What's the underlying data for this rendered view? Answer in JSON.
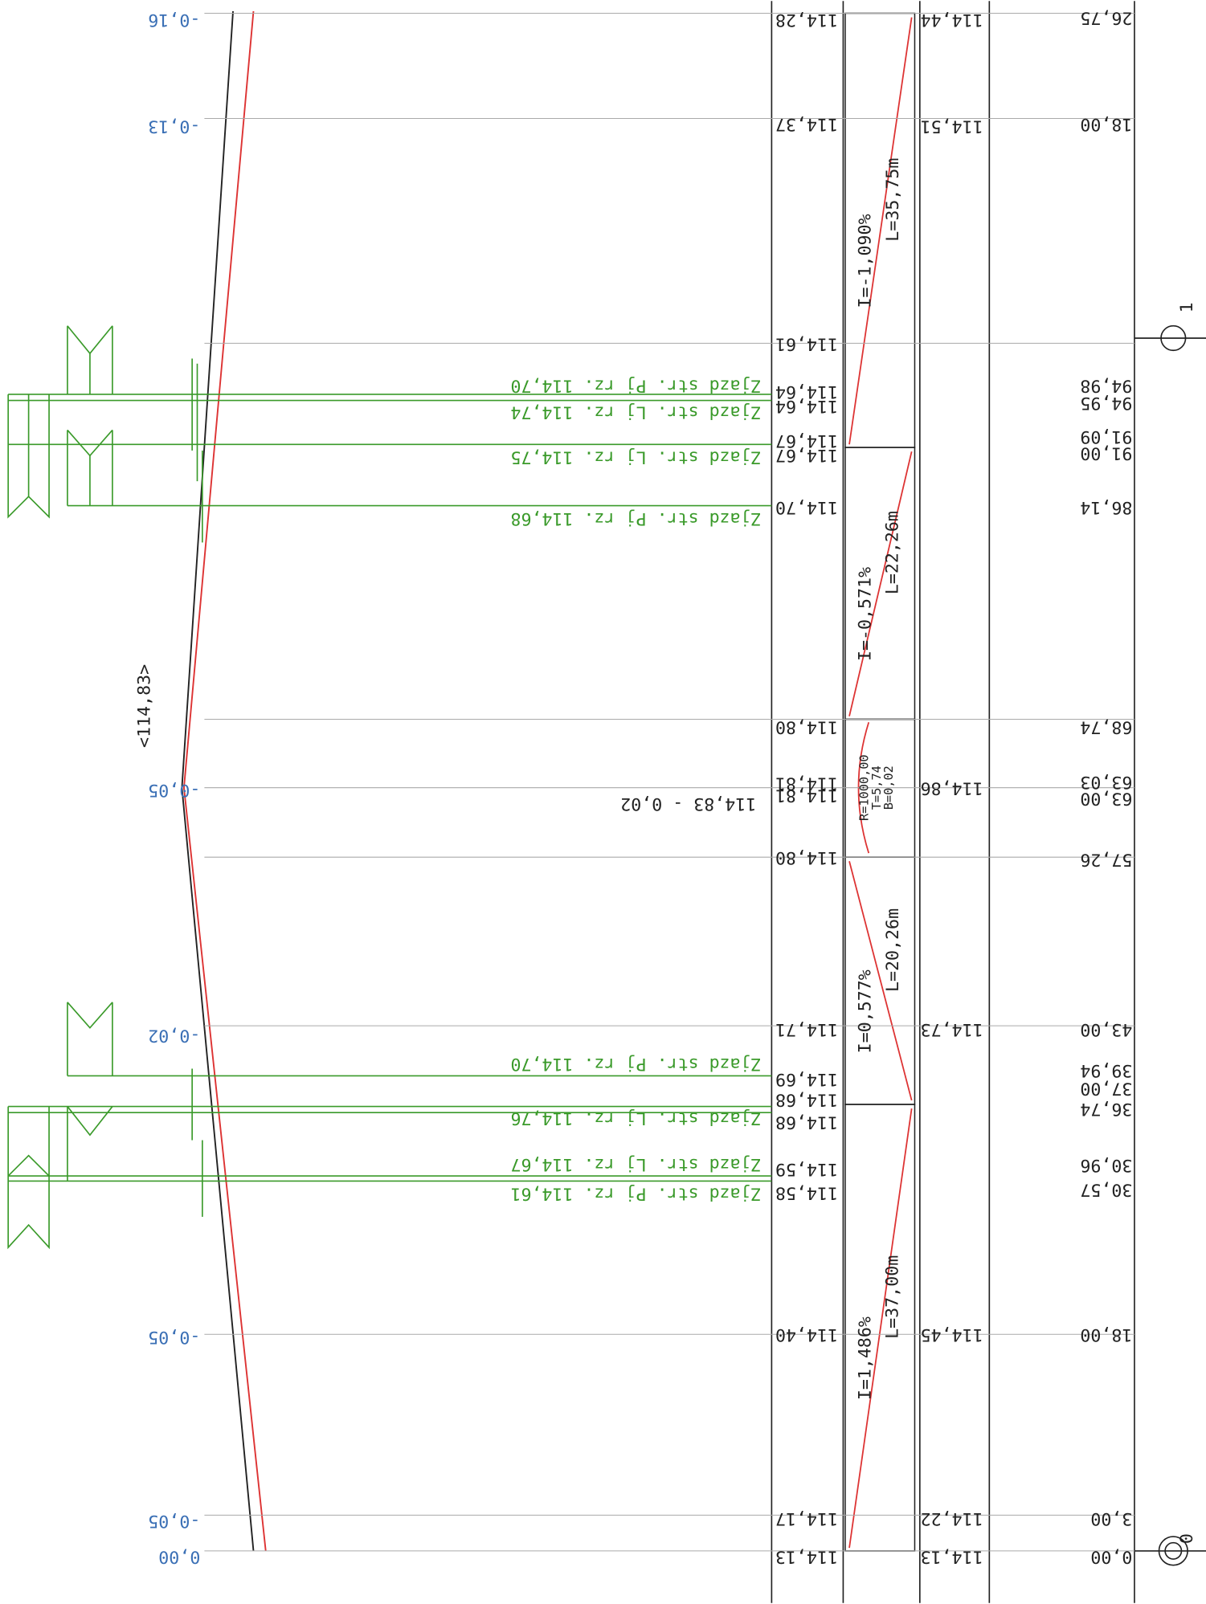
{
  "elevation_labels": [
    "114,28",
    "114,37",
    "114,61",
    "114,64",
    "114,64",
    "114,67",
    "114,67",
    "114,70",
    "114,80",
    "114,81",
    "114,81",
    "114,80",
    "114,71",
    "114,69",
    "114,68",
    "114,68",
    "114,59",
    "114,58",
    "114,40",
    "114,17",
    "114,13"
  ],
  "design_labels": [
    "114,44",
    "114,51",
    "114,86",
    "114,73",
    "114,45",
    "114,22",
    "114,13"
  ],
  "distance_labels": [
    "26,75",
    "18,00",
    "94,98",
    "94,95",
    "91,09",
    "91,00",
    "86,14",
    "68,74",
    "63,03",
    "63,00",
    "57,26",
    "43,00",
    "39,94",
    "37,00",
    "36,74",
    "30,96",
    "30,57",
    "18,00",
    "3,00",
    "0,00"
  ],
  "gradients": [
    {
      "slope": "I=-1,090%",
      "length": "L=35,75m"
    },
    {
      "slope": "I=-0,571%",
      "length": "L=22,26m"
    },
    {
      "slope": "I=0,577%",
      "length": "L=20,26m"
    },
    {
      "slope": "I=1,486%",
      "length": "L=37,00m"
    }
  ],
  "curve": {
    "radius": "R=1000,00",
    "tangent": "T=5,74",
    "bisector": "B=0,02"
  },
  "offset_labels": [
    "-0,16",
    "-0,13",
    "-0,05",
    "-0,02",
    "-0,05",
    "-0,05",
    "0,00"
  ],
  "vertex_label": "<114,83>",
  "vertex_note": "114,83 - 0,02",
  "driveways": [
    "Zjazd str. Pj rz. 114,70",
    "Zjazd str. Lj rz. 114,74",
    "Zjazd str. Lj rz. 114,75",
    "Zjazd str. Pj rz. 114,68",
    "Zjazd str. Pj rz. 114,70",
    "Zjazd str. Lj rz. 114,76",
    "Zjazd str. Lj rz. 114,67",
    "Zjazd str. Pj rz. 114,61"
  ],
  "stations": [
    "1",
    "0"
  ]
}
